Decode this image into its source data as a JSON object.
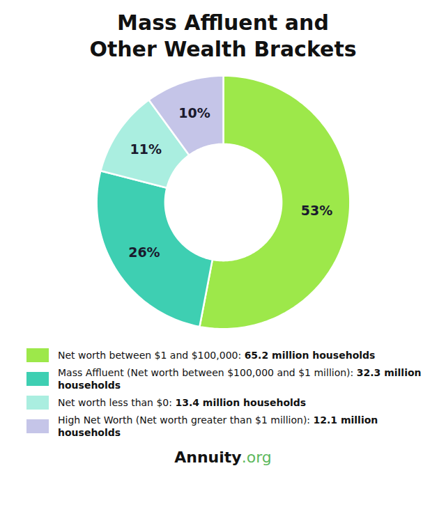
{
  "chart_data": {
    "type": "pie",
    "title": "Mass Affluent and\nOther Wealth Brackets",
    "categories": [
      "Net worth between $1 and $100,000: 65.2 million households",
      "Mass Affluent (Net worth between $100,000 and $1 million): 32.3 million households",
      "Net worth less than $0: 13.4 million households",
      "High Net Worth (Net worth greater than $1 million): 12.1 million households"
    ],
    "values": [
      53,
      26,
      11,
      10
    ],
    "value_labels": [
      "53%",
      "26%",
      "11%",
      "10%"
    ],
    "colors": [
      "#9de84a",
      "#3ecfb2",
      "#aaeee0",
      "#c5c5e8"
    ],
    "data_labels": true,
    "legend": "bottom",
    "annotations": [
      {
        "text": "Annuity",
        "color": "#111111"
      },
      {
        "text": ".org",
        "color": "#5cb85c"
      }
    ]
  }
}
